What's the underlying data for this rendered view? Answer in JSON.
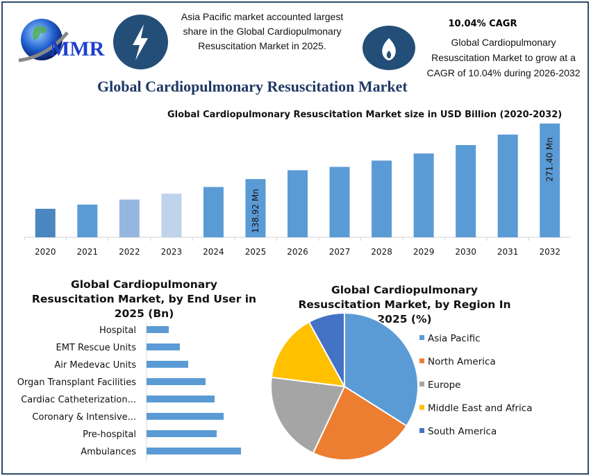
{
  "logo": {
    "text": "MMR"
  },
  "header": {
    "highlight_text": "Asia Pacific market accounted largest share in the Global Cardiopulmonary Resuscitation Market in 2025.",
    "cagr_title": "10.04% CAGR",
    "cagr_text": "Global Cardiopulmonary Resuscitation Market to grow at a CAGR of 10.04% during 2026-2032",
    "icons": [
      "lightning-icon",
      "flame-icon"
    ]
  },
  "main_title": "Global Cardiopulmonary Resuscitation Market",
  "colors": {
    "frame": "#2f4a6b",
    "icon_circle": "#234e78",
    "bar": "#5b9bd5",
    "title": "#1f3864"
  },
  "chart_data": [
    {
      "type": "bar",
      "title": "Global Cardiopulmonary Resuscitation Market size in USD Billion (2020-2032)",
      "categories": [
        "2020",
        "2021",
        "2022",
        "2023",
        "2024",
        "2025",
        "2026",
        "2027",
        "2028",
        "2029",
        "2030",
        "2031",
        "2032"
      ],
      "values": [
        68,
        78,
        90,
        104,
        120,
        138.92,
        160,
        168,
        183,
        200,
        220,
        245,
        271.4
      ],
      "bar_colors": [
        "#4a86bf",
        "#5b9bd5",
        "#95b7df",
        "#c0d3ec",
        "#5b9bd5",
        "#5b9bd5",
        "#5b9bd5",
        "#5b9bd5",
        "#5b9bd5",
        "#5b9bd5",
        "#5b9bd5",
        "#5b9bd5",
        "#5b9bd5"
      ],
      "data_labels": {
        "2025": "138.92 Mn",
        "2032": "271.40 Mn"
      },
      "grid": false
    },
    {
      "type": "bar",
      "orientation": "horizontal",
      "title": "Global Cardiopulmonary Resuscitation Market, by End User in 2025 (Bn)",
      "categories": [
        "Hospital",
        "EMT Rescue Units",
        "Air Medevac Units",
        "Organ Transplant Facilities",
        "Cardiac Catheterization...",
        "Coronary & Intensive...",
        "Pre-hospital",
        "Ambulances"
      ],
      "values": [
        3.2,
        4.8,
        6.0,
        8.5,
        9.8,
        11.1,
        10.1,
        13.6
      ],
      "color": "#5b9bd5",
      "grid": false
    },
    {
      "type": "pie",
      "title": "Global Cardiopulmonary Resuscitation Market, by Region In 2025 (%)",
      "labels": [
        "Asia Pacific",
        "North America",
        "Europe",
        "Middle East and Africa",
        "South America"
      ],
      "values": [
        34,
        23,
        20,
        15,
        8
      ],
      "colors": [
        "#5b9bd5",
        "#ed7d31",
        "#a5a5a5",
        "#ffc000",
        "#4472c4"
      ],
      "legend": "right"
    }
  ]
}
